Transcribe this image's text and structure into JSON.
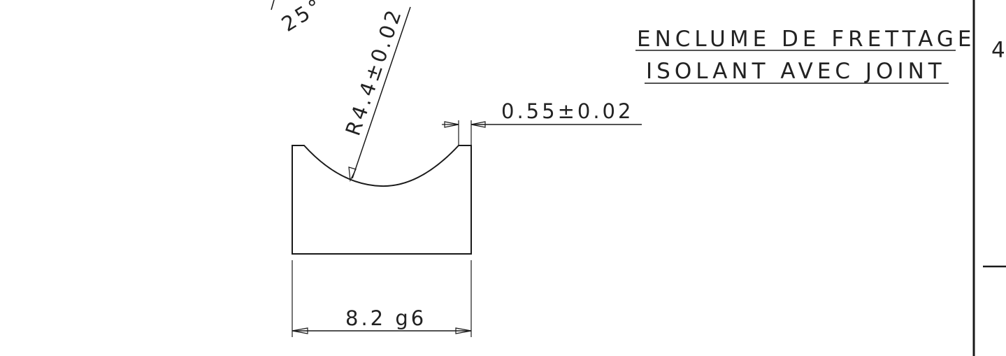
{
  "title": {
    "line1": "ENCLUME DE FRETTAGE",
    "line2": "ISOLANT AVEC JOINT"
  },
  "dimensions": {
    "angle": "25°",
    "radius": "R4.4±0.02",
    "wall": "0.55±0.02",
    "width": "8.2 g6"
  },
  "title_block": {
    "index": "4"
  }
}
